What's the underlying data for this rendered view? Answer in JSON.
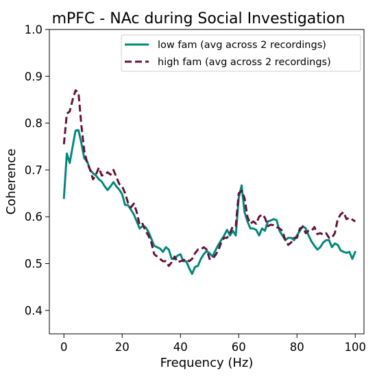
{
  "chart_data": {
    "type": "line",
    "title": "mPFC - NAc during Social Investigation",
    "xlabel": "Frequency (Hz)",
    "ylabel": "Coherence",
    "xlim": [
      -5,
      103
    ],
    "ylim": [
      0.35,
      1.0
    ],
    "xticks": [
      0,
      20,
      40,
      60,
      80,
      100
    ],
    "yticks": [
      0.4,
      0.5,
      0.6,
      0.7,
      0.8,
      0.9,
      1.0
    ],
    "grid": false,
    "legend_position": "top-right",
    "series": [
      {
        "name": "low fam (avg across 2 recordings)",
        "color": "#00897b",
        "style": "solid",
        "points": [
          [
            0,
            0.64
          ],
          [
            1,
            0.735
          ],
          [
            2,
            0.715
          ],
          [
            3,
            0.75
          ],
          [
            4,
            0.784
          ],
          [
            5,
            0.785
          ],
          [
            6,
            0.757
          ],
          [
            7,
            0.725
          ],
          [
            8,
            0.718
          ],
          [
            9,
            0.7
          ],
          [
            10,
            0.693
          ],
          [
            11,
            0.688
          ],
          [
            12,
            0.68
          ],
          [
            13,
            0.675
          ],
          [
            14,
            0.665
          ],
          [
            15,
            0.657
          ],
          [
            16,
            0.665
          ],
          [
            17,
            0.674
          ],
          [
            18,
            0.665
          ],
          [
            19,
            0.658
          ],
          [
            20,
            0.648
          ],
          [
            21,
            0.625
          ],
          [
            22,
            0.625
          ],
          [
            23,
            0.615
          ],
          [
            24,
            0.605
          ],
          [
            25,
            0.59
          ],
          [
            26,
            0.575
          ],
          [
            27,
            0.58
          ],
          [
            28,
            0.578
          ],
          [
            29,
            0.568
          ],
          [
            30,
            0.553
          ],
          [
            31,
            0.538
          ],
          [
            32,
            0.535
          ],
          [
            33,
            0.532
          ],
          [
            34,
            0.525
          ],
          [
            35,
            0.535
          ],
          [
            36,
            0.53
          ],
          [
            37,
            0.51
          ],
          [
            38,
            0.51
          ],
          [
            39,
            0.517
          ],
          [
            40,
            0.52
          ],
          [
            41,
            0.505
          ],
          [
            42,
            0.505
          ],
          [
            43,
            0.49
          ],
          [
            44,
            0.478
          ],
          [
            45,
            0.493
          ],
          [
            46,
            0.495
          ],
          [
            47,
            0.51
          ],
          [
            48,
            0.52
          ],
          [
            49,
            0.527
          ],
          [
            50,
            0.522
          ],
          [
            51,
            0.515
          ],
          [
            52,
            0.528
          ],
          [
            53,
            0.54
          ],
          [
            54,
            0.55
          ],
          [
            55,
            0.56
          ],
          [
            56,
            0.572
          ],
          [
            57,
            0.56
          ],
          [
            58,
            0.57
          ],
          [
            59,
            0.56
          ],
          [
            60,
            0.64
          ],
          [
            61,
            0.667
          ],
          [
            62,
            0.61
          ],
          [
            63,
            0.59
          ],
          [
            64,
            0.575
          ],
          [
            65,
            0.575
          ],
          [
            66,
            0.572
          ],
          [
            67,
            0.56
          ],
          [
            68,
            0.575
          ],
          [
            69,
            0.57
          ],
          [
            70,
            0.59
          ],
          [
            71,
            0.592
          ],
          [
            72,
            0.595
          ],
          [
            73,
            0.593
          ],
          [
            74,
            0.57
          ],
          [
            75,
            0.56
          ],
          [
            76,
            0.55
          ],
          [
            77,
            0.555
          ],
          [
            78,
            0.555
          ],
          [
            79,
            0.55
          ],
          [
            80,
            0.56
          ],
          [
            81,
            0.57
          ],
          [
            82,
            0.58
          ],
          [
            83,
            0.575
          ],
          [
            84,
            0.56
          ],
          [
            85,
            0.547
          ],
          [
            86,
            0.538
          ],
          [
            87,
            0.53
          ],
          [
            88,
            0.535
          ],
          [
            89,
            0.545
          ],
          [
            90,
            0.55
          ],
          [
            91,
            0.55
          ],
          [
            92,
            0.535
          ],
          [
            93,
            0.543
          ],
          [
            94,
            0.54
          ],
          [
            95,
            0.528
          ],
          [
            96,
            0.525
          ],
          [
            97,
            0.523
          ],
          [
            98,
            0.525
          ],
          [
            99,
            0.51
          ],
          [
            100,
            0.525
          ]
        ]
      },
      {
        "name": "high fam (avg across 2 recordings)",
        "color": "#6a0f3a",
        "style": "dashed",
        "points": [
          [
            0,
            0.755
          ],
          [
            1,
            0.82
          ],
          [
            2,
            0.825
          ],
          [
            3,
            0.85
          ],
          [
            4,
            0.87
          ],
          [
            5,
            0.865
          ],
          [
            6,
            0.795
          ],
          [
            7,
            0.74
          ],
          [
            8,
            0.715
          ],
          [
            9,
            0.7
          ],
          [
            10,
            0.68
          ],
          [
            11,
            0.69
          ],
          [
            12,
            0.705
          ],
          [
            13,
            0.688
          ],
          [
            14,
            0.69
          ],
          [
            15,
            0.695
          ],
          [
            16,
            0.69
          ],
          [
            17,
            0.7
          ],
          [
            18,
            0.685
          ],
          [
            19,
            0.67
          ],
          [
            20,
            0.665
          ],
          [
            21,
            0.65
          ],
          [
            22,
            0.63
          ],
          [
            23,
            0.62
          ],
          [
            24,
            0.628
          ],
          [
            25,
            0.61
          ],
          [
            26,
            0.582
          ],
          [
            27,
            0.585
          ],
          [
            28,
            0.57
          ],
          [
            29,
            0.56
          ],
          [
            30,
            0.545
          ],
          [
            31,
            0.52
          ],
          [
            32,
            0.515
          ],
          [
            33,
            0.51
          ],
          [
            34,
            0.505
          ],
          [
            35,
            0.505
          ],
          [
            36,
            0.495
          ],
          [
            37,
            0.503
          ],
          [
            38,
            0.515
          ],
          [
            39,
            0.503
          ],
          [
            40,
            0.505
          ],
          [
            41,
            0.507
          ],
          [
            42,
            0.51
          ],
          [
            43,
            0.505
          ],
          [
            44,
            0.51
          ],
          [
            45,
            0.522
          ],
          [
            46,
            0.53
          ],
          [
            47,
            0.53
          ],
          [
            48,
            0.535
          ],
          [
            49,
            0.53
          ],
          [
            50,
            0.51
          ],
          [
            51,
            0.51
          ],
          [
            52,
            0.518
          ],
          [
            53,
            0.528
          ],
          [
            54,
            0.545
          ],
          [
            55,
            0.555
          ],
          [
            56,
            0.555
          ],
          [
            57,
            0.565
          ],
          [
            58,
            0.58
          ],
          [
            59,
            0.58
          ],
          [
            60,
            0.65
          ],
          [
            61,
            0.655
          ],
          [
            62,
            0.64
          ],
          [
            63,
            0.6
          ],
          [
            64,
            0.585
          ],
          [
            65,
            0.59
          ],
          [
            66,
            0.585
          ],
          [
            67,
            0.6
          ],
          [
            68,
            0.605
          ],
          [
            69,
            0.598
          ],
          [
            70,
            0.58
          ],
          [
            71,
            0.583
          ],
          [
            72,
            0.582
          ],
          [
            73,
            0.578
          ],
          [
            74,
            0.575
          ],
          [
            75,
            0.57
          ],
          [
            76,
            0.55
          ],
          [
            77,
            0.54
          ],
          [
            78,
            0.545
          ],
          [
            79,
            0.555
          ],
          [
            80,
            0.555
          ],
          [
            81,
            0.575
          ],
          [
            82,
            0.578
          ],
          [
            83,
            0.565
          ],
          [
            84,
            0.57
          ],
          [
            85,
            0.57
          ],
          [
            86,
            0.578
          ],
          [
            87,
            0.563
          ],
          [
            88,
            0.565
          ],
          [
            89,
            0.562
          ],
          [
            90,
            0.565
          ],
          [
            91,
            0.555
          ],
          [
            92,
            0.555
          ],
          [
            93,
            0.565
          ],
          [
            94,
            0.595
          ],
          [
            95,
            0.605
          ],
          [
            96,
            0.61
          ],
          [
            97,
            0.595
          ],
          [
            98,
            0.598
          ],
          [
            99,
            0.594
          ],
          [
            100,
            0.59
          ]
        ]
      }
    ]
  }
}
